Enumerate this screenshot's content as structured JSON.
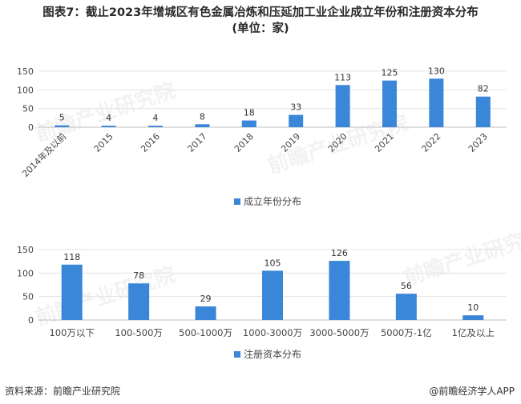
{
  "title": {
    "main": "图表7：截止2023年增城区有色金属冶炼和压延加工业企业成立年份和注册资本分布",
    "sub": "(单位：家)"
  },
  "chart_data": [
    {
      "type": "bar",
      "categories": [
        "2014年及以前",
        "2015",
        "2016",
        "2017",
        "2018",
        "2019",
        "2020",
        "2021",
        "2022",
        "2023"
      ],
      "series": [
        {
          "name": "成立年份分布",
          "values": [
            5,
            4,
            4,
            8,
            18,
            33,
            113,
            125,
            130,
            82
          ]
        }
      ],
      "ylim": [
        0,
        150
      ],
      "yticks": [
        0,
        50,
        100,
        150
      ],
      "legend": "bottom-center",
      "data_labels": true,
      "color": "#3a86d8"
    },
    {
      "type": "bar",
      "categories": [
        "100万以下",
        "100-500万",
        "500-1000万",
        "1000-3000万",
        "3000-5000万",
        "5000万-1亿",
        "1亿及以上"
      ],
      "series": [
        {
          "name": "注册资本分布",
          "values": [
            118,
            78,
            29,
            105,
            126,
            56,
            10
          ]
        }
      ],
      "ylim": [
        0,
        150
      ],
      "yticks": [
        0,
        50,
        100,
        150
      ],
      "legend": "bottom-center",
      "data_labels": true,
      "color": "#3a86d8"
    }
  ],
  "footer": {
    "source": "资料来源：前瞻产业研究院",
    "brand": "@前瞻经济学人APP"
  },
  "watermark": "前瞻产业研究院"
}
